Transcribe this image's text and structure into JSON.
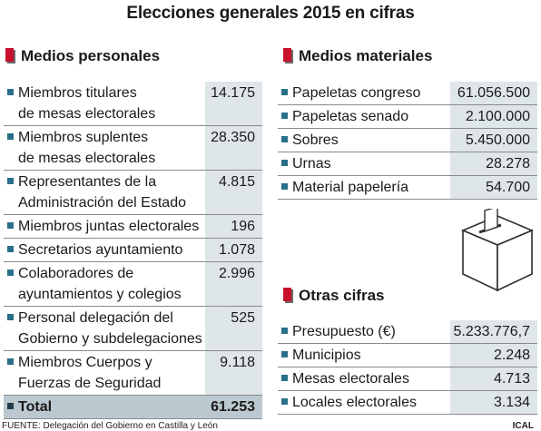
{
  "title": "Elecciones generales 2015 en cifras",
  "colors": {
    "accent": "#c8102e",
    "bullet": "#2a6f8a",
    "value_bg": "#dfe6ea",
    "total_bg": "#bcc8cf"
  },
  "personal": {
    "heading": "Medios personales",
    "rows": [
      {
        "label1": "Miembros titulares",
        "label2": "de mesas electorales",
        "value": "14.175"
      },
      {
        "label1": "Miembros suplentes",
        "label2": "de mesas electorales",
        "value": "28.350"
      },
      {
        "label1": "Representantes de la",
        "label2": "Administración del Estado",
        "value": "4.815"
      },
      {
        "label1": "Miembros juntas electorales",
        "label2": "",
        "value": "196"
      },
      {
        "label1": "Secretarios ayuntamiento",
        "label2": "",
        "value": "1.078"
      },
      {
        "label1": "Colaboradores de",
        "label2": "ayuntamientos y colegios",
        "value": "2.996"
      },
      {
        "label1": "Personal delegación del",
        "label2": "Gobierno y subdelegaciones",
        "value": "525"
      },
      {
        "label1": "Miembros Cuerpos y",
        "label2": "Fuerzas de Seguridad",
        "value": "9.118"
      }
    ],
    "total": {
      "label": "Total",
      "value": "61.253"
    }
  },
  "materiales": {
    "heading": "Medios materiales",
    "rows": [
      {
        "label": "Papeletas congreso",
        "value": "61.056.500"
      },
      {
        "label": "Papeletas senado",
        "value": "2.100.000"
      },
      {
        "label": "Sobres",
        "value": "5.450.000"
      },
      {
        "label": "Urnas",
        "value": "28.278"
      },
      {
        "label": "Material papelería",
        "value": "54.700"
      }
    ]
  },
  "otras": {
    "heading": "Otras cifras",
    "rows": [
      {
        "label": "Presupuesto (€)",
        "value": "5.233.776,7"
      },
      {
        "label": "Municipios",
        "value": "2.248"
      },
      {
        "label": "Mesas electorales",
        "value": "4.713"
      },
      {
        "label": "Locales electorales",
        "value": "3.134"
      }
    ]
  },
  "footer": {
    "source": "FUENTE: Delegación del Gobierno en Castilla y León",
    "credit": "ICAL"
  },
  "icons": {
    "ballot": "ballot-box-icon"
  }
}
